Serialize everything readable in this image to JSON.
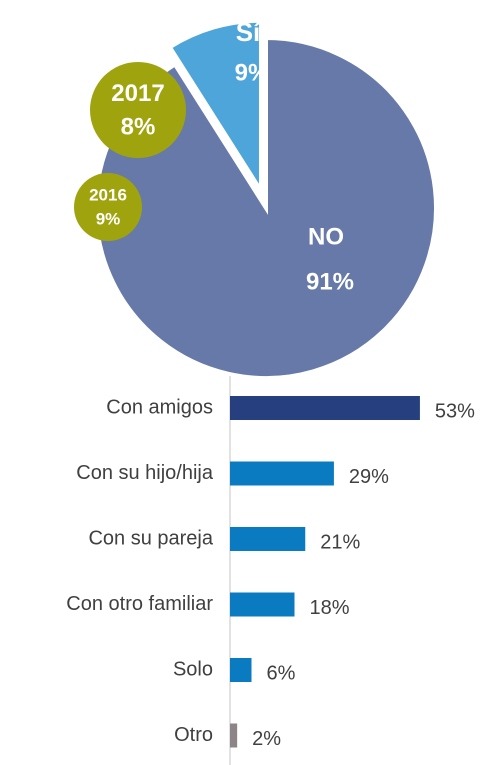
{
  "chart_data": [
    {
      "type": "pie",
      "categories": [
        "Sí",
        "NO"
      ],
      "values": [
        9,
        91
      ],
      "value_labels": [
        "9%",
        "91%"
      ],
      "colors": [
        "#4ea5d9",
        "#6779a8"
      ],
      "exploded": [
        true,
        false
      ],
      "annotations": [
        {
          "title": "2017",
          "text": "8%",
          "color": "#9fa40e"
        },
        {
          "title": "2016",
          "text": "9%",
          "color": "#9fa40e"
        }
      ]
    },
    {
      "type": "hbar",
      "categories": [
        "Con amigos",
        "Con su hijo/hija",
        "Con su pareja",
        "Con otro familiar",
        "Solo",
        "Otro"
      ],
      "values": [
        53,
        29,
        21,
        18,
        6,
        2
      ],
      "value_labels": [
        "53%",
        "29%",
        "21%",
        "18%",
        "6%",
        "2%"
      ],
      "colors": [
        "#263f7e",
        "#0a7bc1",
        "#0a7bc1",
        "#0a7bc1",
        "#0a7bc1",
        "#8c8585"
      ],
      "xlim": [
        0,
        60
      ]
    }
  ]
}
